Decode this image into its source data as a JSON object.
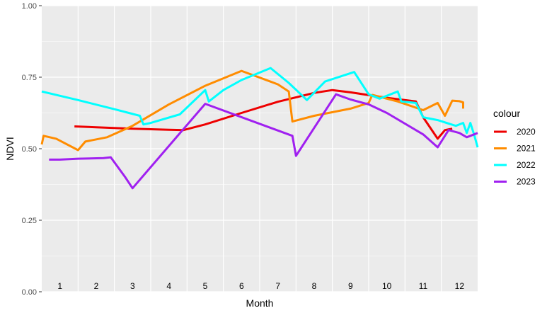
{
  "chart_data": {
    "type": "line",
    "xlabel": "Month",
    "ylabel": "NDVI",
    "ylim": [
      0,
      1
    ],
    "xlim": [
      0.5,
      12.5
    ],
    "y_ticks": [
      "0.00",
      "0.25",
      "0.50",
      "0.75",
      "1.00"
    ],
    "y_tick_values": [
      0,
      0.25,
      0.5,
      0.75,
      1.0
    ],
    "month_labels": [
      "1",
      "2",
      "3",
      "4",
      "5",
      "6",
      "7",
      "8",
      "9",
      "10",
      "11",
      "12"
    ],
    "legend_title": "colour",
    "legend_position": "right",
    "grid": true,
    "series": [
      {
        "name": "2020",
        "color": "#ee0000",
        "points": [
          [
            1.4,
            0.578
          ],
          [
            2.0,
            0.575
          ],
          [
            3.0,
            0.57
          ],
          [
            4.0,
            0.566
          ],
          [
            4.4,
            0.565
          ],
          [
            5.0,
            0.585
          ],
          [
            6.0,
            0.625
          ],
          [
            7.0,
            0.664
          ],
          [
            8.0,
            0.695
          ],
          [
            8.5,
            0.705
          ],
          [
            9.0,
            0.697
          ],
          [
            10.0,
            0.678
          ],
          [
            10.8,
            0.665
          ],
          [
            11.0,
            0.61
          ],
          [
            11.4,
            0.535
          ],
          [
            11.6,
            0.565
          ],
          [
            11.8,
            0.57
          ]
        ]
      },
      {
        "name": "2021",
        "color": "#ff8c00",
        "points": [
          [
            0.5,
            0.515
          ],
          [
            0.55,
            0.545
          ],
          [
            0.9,
            0.535
          ],
          [
            1.5,
            0.495
          ],
          [
            1.7,
            0.525
          ],
          [
            2.3,
            0.54
          ],
          [
            3.0,
            0.58
          ],
          [
            4.0,
            0.655
          ],
          [
            5.0,
            0.72
          ],
          [
            6.0,
            0.772
          ],
          [
            7.0,
            0.725
          ],
          [
            7.3,
            0.7
          ],
          [
            7.4,
            0.595
          ],
          [
            8.0,
            0.615
          ],
          [
            9.0,
            0.64
          ],
          [
            9.5,
            0.66
          ],
          [
            9.6,
            0.688
          ],
          [
            10.3,
            0.665
          ],
          [
            11.0,
            0.635
          ],
          [
            11.4,
            0.66
          ],
          [
            11.6,
            0.615
          ],
          [
            11.8,
            0.668
          ],
          [
            12.0,
            0.666
          ],
          [
            12.1,
            0.662
          ],
          [
            12.1,
            0.64
          ]
        ]
      },
      {
        "name": "2022",
        "color": "#00ffff",
        "points": [
          [
            0.5,
            0.7
          ],
          [
            1.5,
            0.67
          ],
          [
            2.5,
            0.638
          ],
          [
            3.2,
            0.615
          ],
          [
            3.3,
            0.585
          ],
          [
            3.5,
            0.59
          ],
          [
            4.3,
            0.62
          ],
          [
            5.0,
            0.705
          ],
          [
            5.1,
            0.665
          ],
          [
            5.5,
            0.705
          ],
          [
            6.0,
            0.74
          ],
          [
            6.8,
            0.782
          ],
          [
            7.3,
            0.73
          ],
          [
            7.8,
            0.67
          ],
          [
            8.3,
            0.735
          ],
          [
            9.1,
            0.768
          ],
          [
            9.5,
            0.69
          ],
          [
            9.8,
            0.675
          ],
          [
            10.3,
            0.7
          ],
          [
            10.4,
            0.665
          ],
          [
            10.8,
            0.66
          ],
          [
            11.0,
            0.61
          ],
          [
            11.4,
            0.6
          ],
          [
            11.9,
            0.58
          ],
          [
            12.1,
            0.59
          ],
          [
            12.2,
            0.555
          ],
          [
            12.3,
            0.59
          ],
          [
            12.4,
            0.55
          ],
          [
            12.5,
            0.505
          ]
        ]
      },
      {
        "name": "2023",
        "color": "#a020f0",
        "points": [
          [
            0.7,
            0.462
          ],
          [
            1.0,
            0.462
          ],
          [
            1.5,
            0.465
          ],
          [
            2.2,
            0.467
          ],
          [
            2.4,
            0.47
          ],
          [
            2.8,
            0.4
          ],
          [
            3.0,
            0.362
          ],
          [
            5.0,
            0.657
          ],
          [
            7.4,
            0.545
          ],
          [
            7.5,
            0.475
          ],
          [
            8.6,
            0.69
          ],
          [
            9.0,
            0.672
          ],
          [
            9.5,
            0.655
          ],
          [
            10.0,
            0.625
          ],
          [
            11.0,
            0.55
          ],
          [
            11.4,
            0.505
          ],
          [
            11.7,
            0.565
          ],
          [
            12.0,
            0.555
          ],
          [
            12.2,
            0.54
          ],
          [
            12.5,
            0.555
          ]
        ]
      }
    ]
  }
}
